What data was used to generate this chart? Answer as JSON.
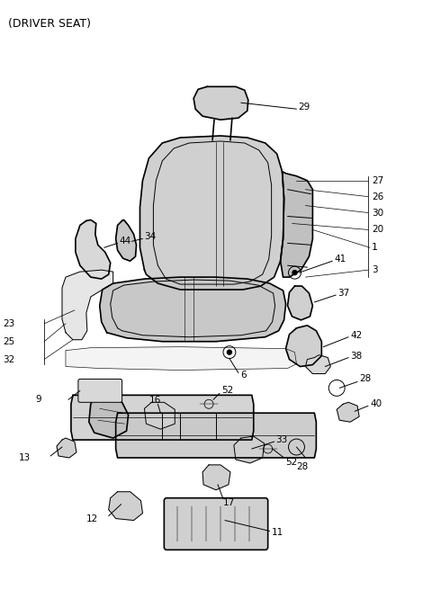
{
  "title": "(DRIVER SEAT)",
  "bg_color": "#ffffff",
  "line_color": "#000000",
  "fill_seat": "#c8c8c8",
  "fill_light": "#e0e0e0",
  "fill_dark": "#b0b0b0"
}
